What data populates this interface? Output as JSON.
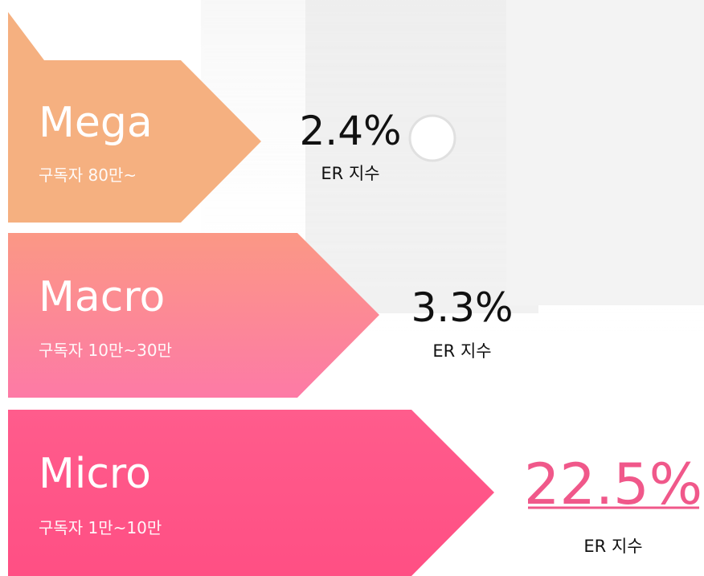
{
  "tiers": [
    {
      "name": "Mega",
      "subscribers": "구독자 80만~",
      "er_value": "2.4%",
      "er_label": "ER 지수"
    },
    {
      "name": "Macro",
      "subscribers": "구독자 10만~30만",
      "er_value": "3.3%",
      "er_label": "ER 지수"
    },
    {
      "name": "Micro",
      "subscribers": "구독자 1만~10만",
      "er_value": "22.5%",
      "er_label": "ER 지수"
    }
  ]
}
